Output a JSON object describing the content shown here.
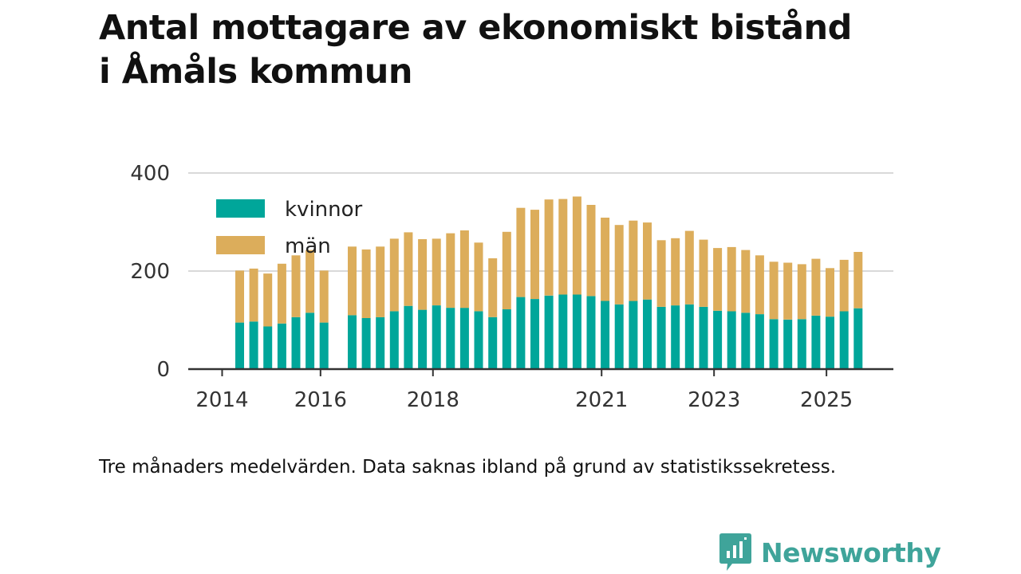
{
  "header": {
    "title_line1": "Antal mottagare av ekonomiskt bistånd",
    "title_line2": "i Åmåls kommun"
  },
  "footer": {
    "note": "Tre månaders medelvärden. Data saknas ibland på grund av statistikssekretess.",
    "brand": "Newsworthy"
  },
  "colors": {
    "kvinnor": "#00a69a",
    "man": "#dcad5b",
    "grid": "#d9d9d9",
    "axis": "#333333",
    "brand": "#3fa49a"
  },
  "chart_data": {
    "type": "bar",
    "stacked": true,
    "grid": true,
    "legend_position": "top-left",
    "ylim": [
      0,
      400
    ],
    "y_ticks": [
      0,
      200,
      400
    ],
    "x_ticks": [
      "2014",
      "2016",
      "2018",
      "2021",
      "2023",
      "2025"
    ],
    "x": [
      "2014-Q3",
      "2014-Q4",
      "2015-Q1",
      "2015-Q2",
      "2015-Q3",
      "2015-Q4",
      "2016-Q1",
      "2016-Q2",
      "2016-Q3",
      "2016-Q4",
      "2017-Q1",
      "2017-Q2",
      "2017-Q3",
      "2017-Q4",
      "2018-Q1",
      "2018-Q2",
      "2018-Q3",
      "2018-Q4",
      "2019-Q1",
      "2019-Q2",
      "2019-Q3",
      "2019-Q4",
      "2020-Q1",
      "2020-Q2",
      "2020-Q3",
      "2020-Q4",
      "2021-Q1",
      "2021-Q2",
      "2021-Q3",
      "2021-Q4",
      "2022-Q1",
      "2022-Q2",
      "2022-Q3",
      "2022-Q4",
      "2023-Q1",
      "2023-Q2",
      "2023-Q3",
      "2023-Q4",
      "2024-Q1",
      "2024-Q2",
      "2024-Q3",
      "2024-Q4",
      "2025-Q1",
      "2025-Q2",
      "2025-Q3"
    ],
    "series": [
      {
        "name": "kvinnor",
        "values": [
          95,
          97,
          87,
          93,
          106,
          115,
          95,
          null,
          110,
          104,
          106,
          118,
          129,
          121,
          130,
          125,
          125,
          118,
          106,
          122,
          147,
          143,
          150,
          152,
          152,
          149,
          139,
          132,
          139,
          142,
          127,
          130,
          132,
          127,
          119,
          118,
          115,
          112,
          102,
          101,
          102,
          109,
          107,
          118,
          124
        ]
      },
      {
        "name": "män",
        "values": [
          106,
          108,
          108,
          122,
          126,
          128,
          106,
          null,
          140,
          140,
          144,
          148,
          150,
          144,
          136,
          152,
          158,
          140,
          120,
          158,
          182,
          182,
          196,
          195,
          200,
          186,
          170,
          162,
          164,
          157,
          136,
          137,
          150,
          137,
          128,
          131,
          128,
          120,
          117,
          116,
          112,
          116,
          99,
          105,
          115
        ]
      }
    ]
  }
}
